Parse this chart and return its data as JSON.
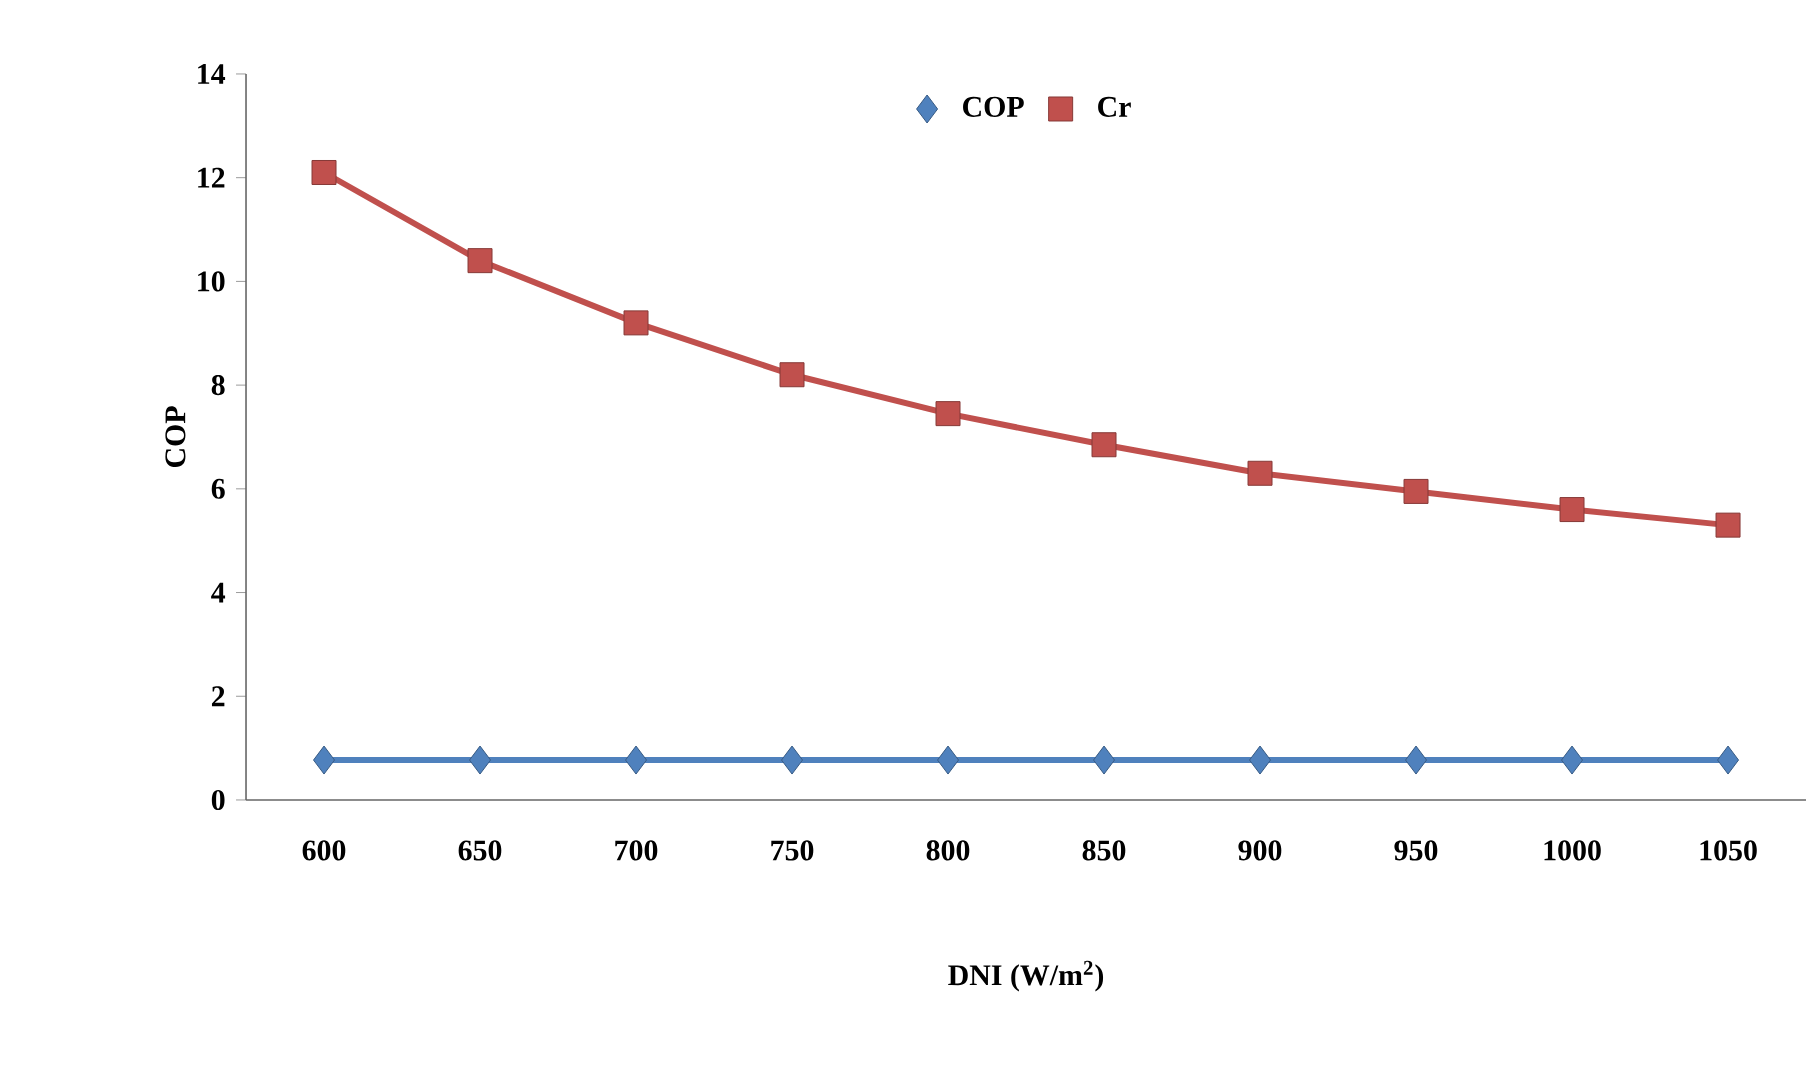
{
  "chart_data": {
    "type": "line",
    "xlabel": "DNI (W/m$^{2}$)",
    "ylabel": "COP",
    "categories": [
      "600",
      "650",
      "700",
      "750",
      "800",
      "850",
      "900",
      "950",
      "1000",
      "1050"
    ],
    "series": [
      {
        "name": "COP",
        "color": "#4f81bd",
        "marker": "diamond",
        "values": [
          0.77,
          0.77,
          0.77,
          0.77,
          0.77,
          0.77,
          0.77,
          0.77,
          0.77,
          0.77
        ]
      },
      {
        "name": "Cr",
        "color": "#c0504d",
        "marker": "square",
        "values": [
          12.1,
          10.4,
          9.2,
          8.2,
          7.45,
          6.85,
          6.3,
          5.95,
          5.6,
          5.3
        ]
      }
    ],
    "ylim": [
      0,
      14
    ],
    "yticks": [
      0,
      2,
      4,
      6,
      8,
      10,
      12,
      14
    ],
    "grid": false,
    "legend": "top",
    "line_style": "solid"
  }
}
